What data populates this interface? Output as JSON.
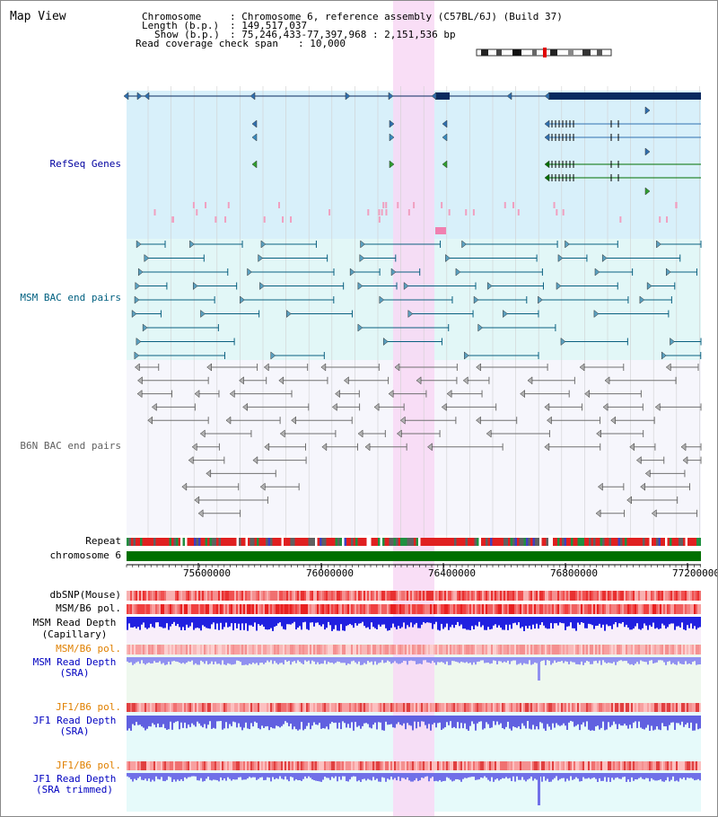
{
  "title": "Map View",
  "info": {
    "chromosome_label": "Chromosome",
    "chromosome_value": ": Chromosome 6, reference assembly (C57BL/6J) (Build 37)",
    "length_label": "Length (b.p.)",
    "length_value": ": 149,517,037",
    "show_label": "Show (b.p.)",
    "show_value": ": 75,246,433-77,397,968 : 2,151,536 bp",
    "coverage_label": "Read coverage check span",
    "coverage_value": ": 10,000"
  },
  "tracks": {
    "refseq": "RefSeq Genes",
    "msm_bac": "MSM BAC end pairs",
    "b6n_bac": "B6N BAC end pairs",
    "repeat": "Repeat",
    "chromosome": "chromosome 6",
    "dbsnp": "dbSNP(Mouse)",
    "msm_b6_pol": "MSM/B6 pol.",
    "msm_read_depth_cap_1": "MSM Read Depth",
    "msm_read_depth_cap_2": "(Capillary)",
    "msm_b6_pol_2": "MSM/B6 pol.",
    "msm_read_depth_sra_1": "MSM Read Depth",
    "msm_read_depth_sra_2": "(SRA)",
    "jf1_b6_pol": "JF1/B6 pol.",
    "jf1_read_depth_sra_1": "JF1 Read Depth",
    "jf1_read_depth_sra_2": "(SRA)",
    "jf1_b6_pol_2": "JF1/B6 pol.",
    "jf1_read_depth_trim_1": "JF1 Read Depth",
    "jf1_read_depth_trim_2": "(SRA trimmed)"
  },
  "axis": {
    "ticks": [
      "75600000",
      "76000000",
      "76400000",
      "76800000",
      "77200000"
    ]
  },
  "colors": {
    "refseq_bg": "#d8f0fa",
    "msm_bac_bg": "#e2f7f7",
    "b6n_bac_bg": "#f6f6fc",
    "highlight": "#f8d8f4",
    "msm_label": "#006080",
    "refseq_label": "#0000a0",
    "b6n_label": "#606060",
    "pol_orange": "#e08000",
    "depth_blue": "#2020c0",
    "chrom_green": "#007000"
  }
}
